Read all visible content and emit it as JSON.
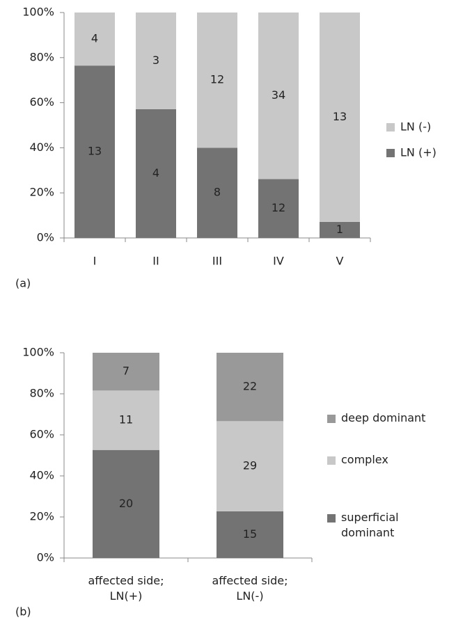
{
  "chart_data": [
    {
      "type": "bar",
      "stacking": "percent",
      "panel_label": "(a)",
      "categories": [
        "I",
        "II",
        "III",
        "IV",
        "V"
      ],
      "series": [
        {
          "name": "LN (+)",
          "color": "#737373",
          "values": [
            13,
            4,
            8,
            12,
            1
          ]
        },
        {
          "name": "LN (-)",
          "color": "#c8c8c8",
          "values": [
            4,
            3,
            12,
            34,
            13
          ]
        }
      ],
      "ylim": [
        0,
        100
      ],
      "yticks": [
        {
          "value": 0,
          "label": "0%"
        },
        {
          "value": 20,
          "label": "20%"
        },
        {
          "value": 40,
          "label": "40%"
        },
        {
          "value": 60,
          "label": "60%"
        },
        {
          "value": 80,
          "label": "80%"
        },
        {
          "value": 100,
          "label": "100%"
        }
      ],
      "legend": "right",
      "grid": false
    },
    {
      "type": "bar",
      "stacking": "percent",
      "panel_label": "(b)",
      "categories": [
        "affected side; LN(+)",
        "affected side; LN(-)"
      ],
      "series": [
        {
          "name": "superficial dominant",
          "color": "#737373",
          "values": [
            20,
            15
          ]
        },
        {
          "name": "complex",
          "color": "#c8c8c8",
          "values": [
            11,
            29
          ]
        },
        {
          "name": "deep dominant",
          "color": "#999999",
          "values": [
            7,
            22
          ]
        }
      ],
      "ylim": [
        0,
        100
      ],
      "yticks": [
        {
          "value": 0,
          "label": "0%"
        },
        {
          "value": 20,
          "label": "20%"
        },
        {
          "value": 40,
          "label": "40%"
        },
        {
          "value": 60,
          "label": "60%"
        },
        {
          "value": 80,
          "label": "80%"
        },
        {
          "value": 100,
          "label": "100%"
        }
      ],
      "legend": "right",
      "grid": false
    }
  ]
}
